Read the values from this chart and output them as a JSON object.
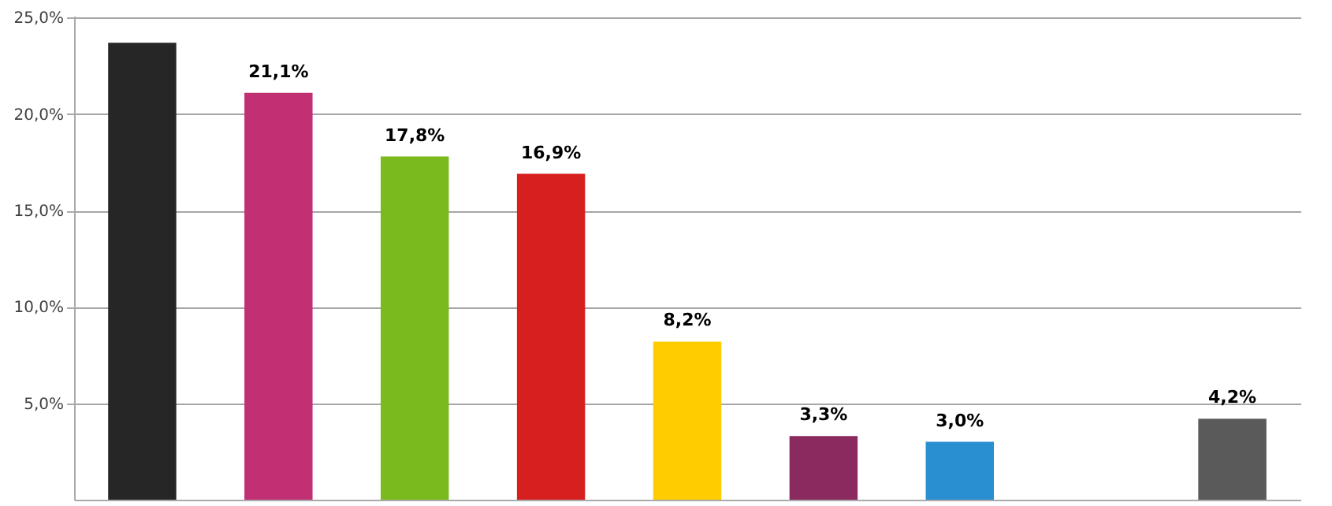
{
  "chart_data": {
    "type": "bar",
    "categories": [
      null,
      null,
      null,
      null,
      null,
      null,
      null,
      null,
      null
    ],
    "values": [
      23.7,
      21.1,
      17.8,
      16.9,
      8.2,
      3.3,
      3.0,
      null,
      4.2
    ],
    "colors": [
      "#262626",
      "#c03073",
      "#7aba1c",
      "#d81f1f",
      "#ffcc00",
      "#8a2a5e",
      "#2a8fd0",
      "#999999",
      "#5a5a5a"
    ],
    "value_labels": [
      null,
      "21,1%",
      "17,8%",
      "16,9%",
      "8,2%",
      "3,3%",
      "3,0%",
      null,
      "4,2%"
    ],
    "ylim": [
      0,
      25.1
    ],
    "yticks": [
      {
        "value": 5,
        "label": "5,0%"
      },
      {
        "value": 10,
        "label": "10,0%"
      },
      {
        "value": 15,
        "label": "15,0%"
      },
      {
        "value": 20,
        "label": "20,0%"
      },
      {
        "value": 25,
        "label": "25,0%"
      }
    ],
    "grid": "y"
  }
}
